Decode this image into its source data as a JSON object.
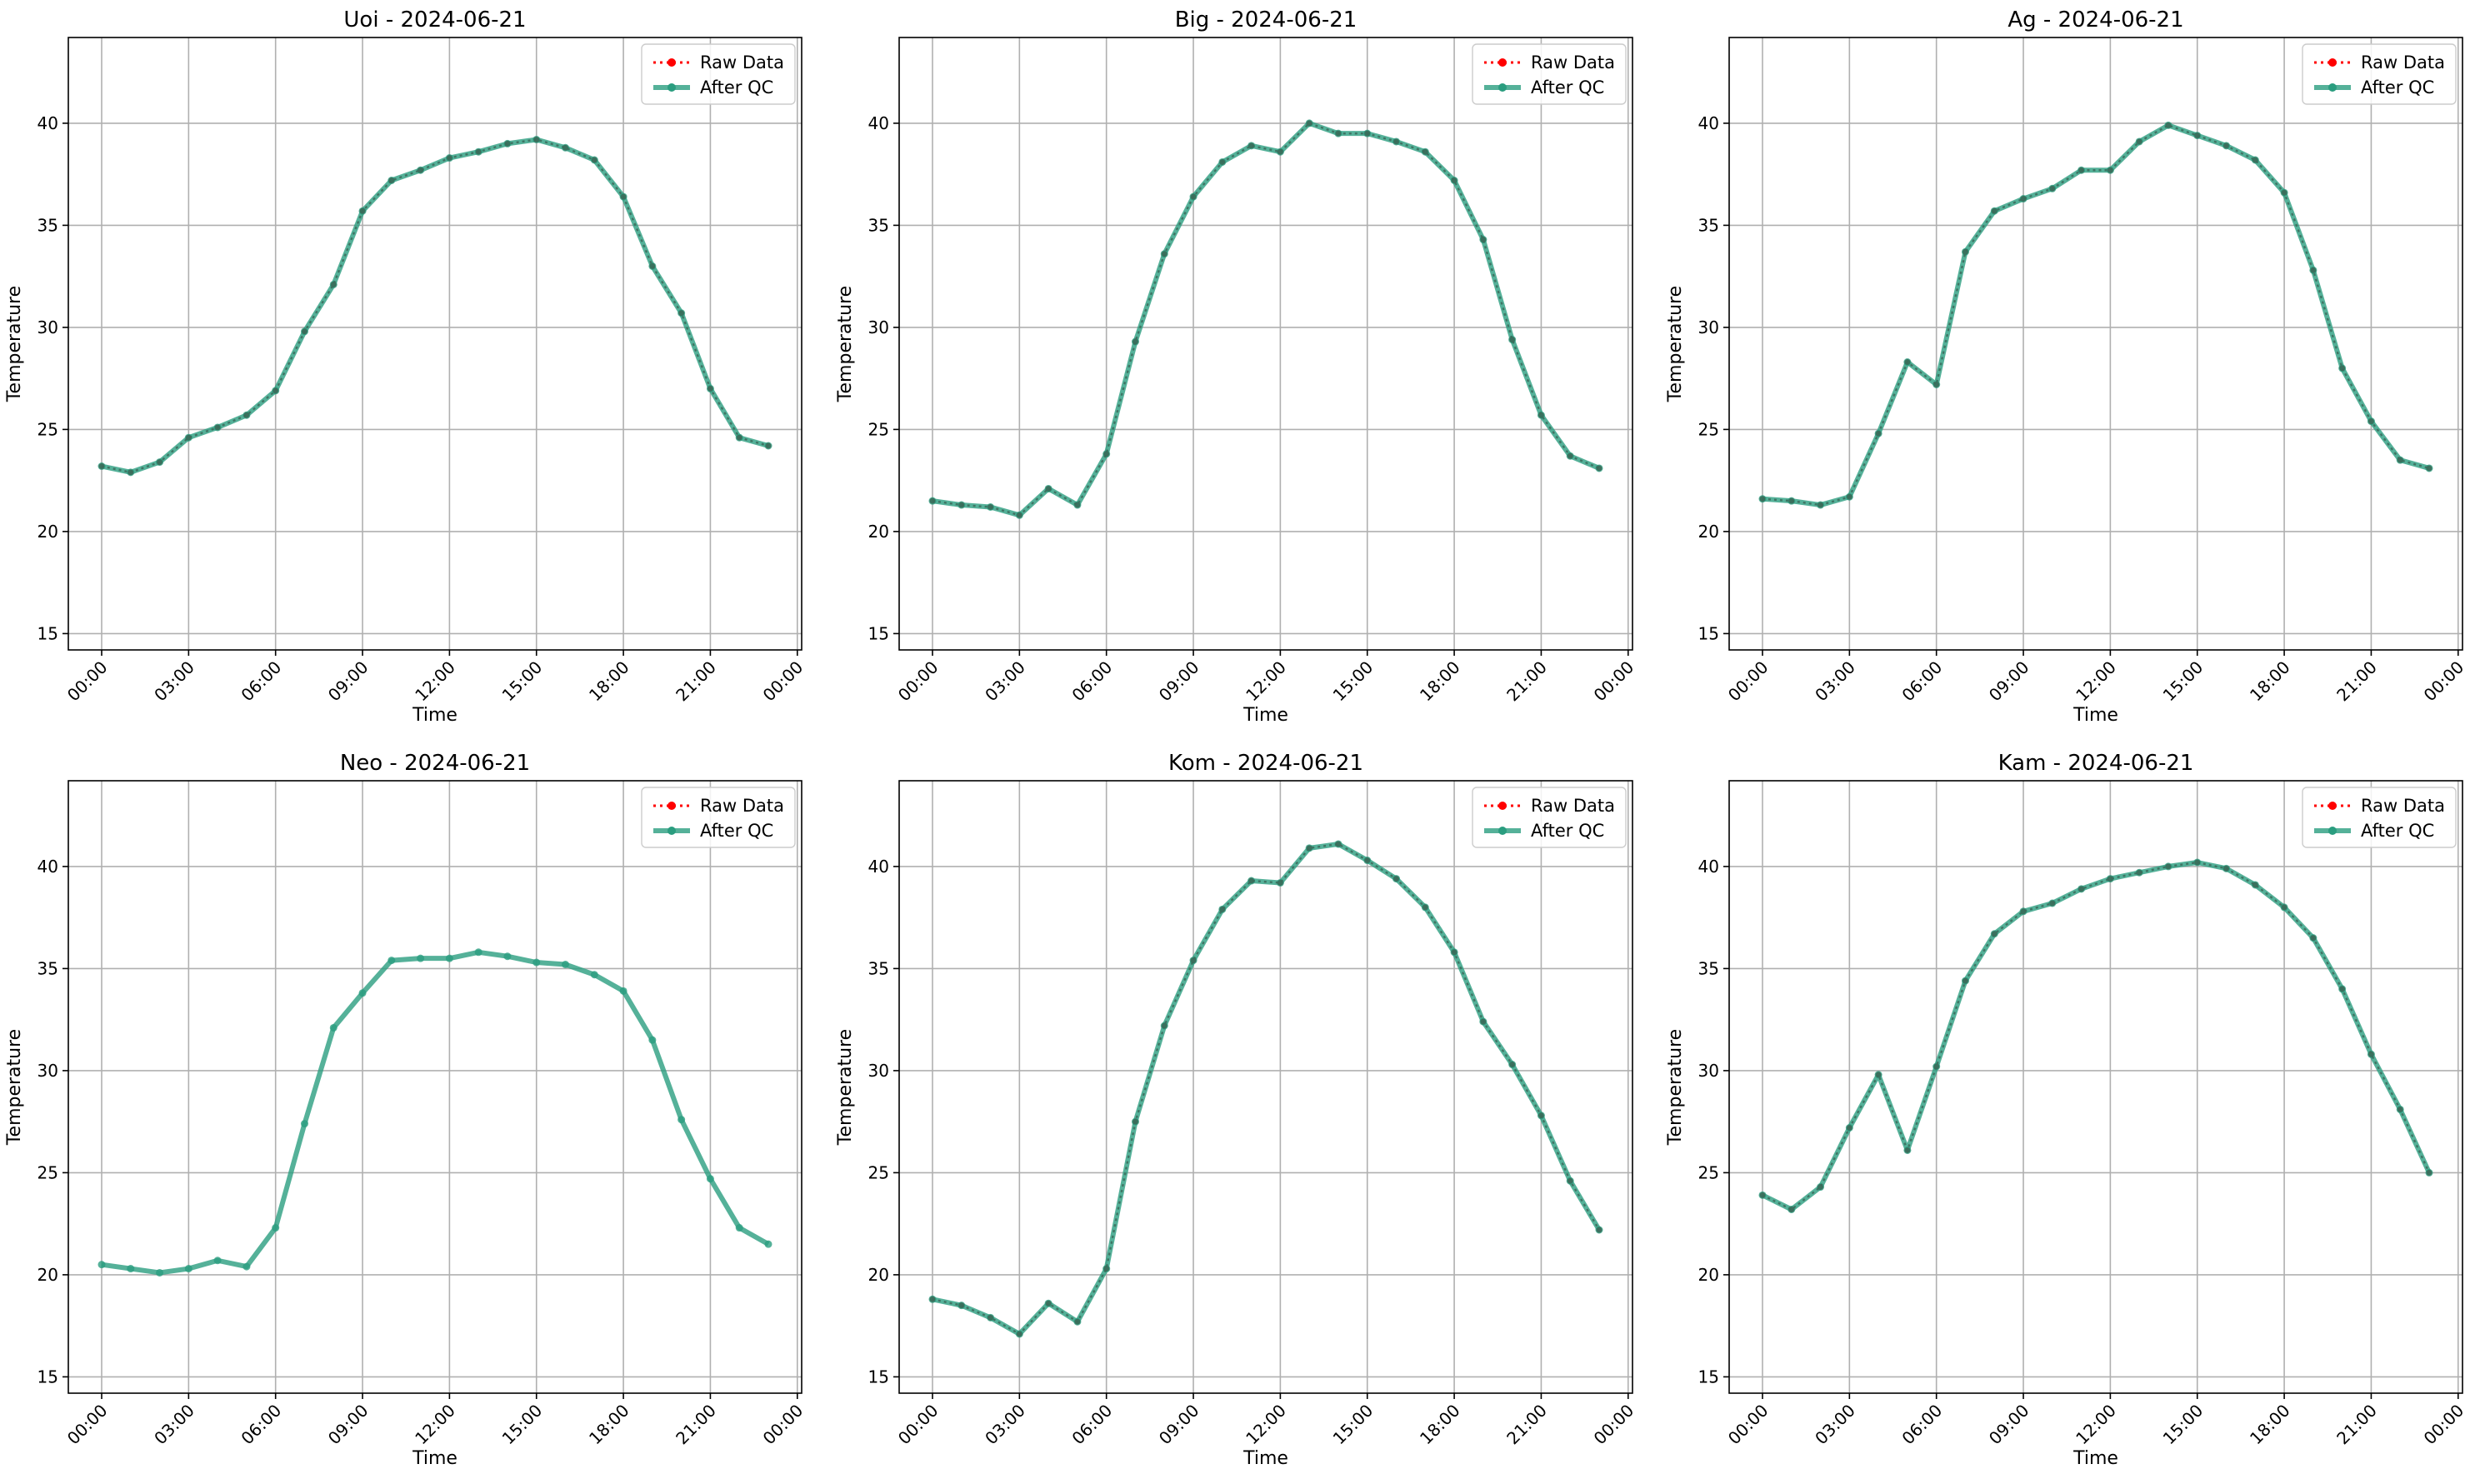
{
  "colors": {
    "raw": "#ff0000",
    "qc": "#2a9d7f",
    "grid": "#b0b0b0",
    "axis": "#000000"
  },
  "chart_data": [
    {
      "type": "line",
      "title": "Uoi - 2024-06-21",
      "xlabel": "Time",
      "ylabel": "Temperature",
      "ylim": [
        14.2,
        44.2
      ],
      "xlim_hours": [
        -1.15,
        24.15
      ],
      "yticks": [
        15,
        20,
        25,
        30,
        35,
        40
      ],
      "xticks": [
        "00:00",
        "03:00",
        "06:00",
        "09:00",
        "12:00",
        "15:00",
        "18:00",
        "21:00",
        "00:00"
      ],
      "grid": true,
      "legend_position": "top-right",
      "x_hours": [
        0,
        1,
        2,
        3,
        4,
        5,
        6,
        7,
        8,
        9,
        10,
        11,
        12,
        13,
        14,
        15,
        16,
        17,
        18,
        19,
        20,
        21,
        22,
        23
      ],
      "series": [
        {
          "name": "Raw Data",
          "values": [
            23.2,
            22.9,
            23.4,
            24.6,
            25.1,
            25.7,
            26.9,
            29.8,
            32.1,
            35.7,
            37.2,
            37.7,
            38.3,
            38.6,
            39.0,
            39.2,
            38.8,
            38.2,
            36.4,
            33.0,
            30.7,
            27.0,
            24.6,
            24.2
          ]
        },
        {
          "name": "After QC",
          "values": [
            23.2,
            22.9,
            23.4,
            24.6,
            25.1,
            25.7,
            26.9,
            29.8,
            32.1,
            35.7,
            37.2,
            37.7,
            38.3,
            38.6,
            39.0,
            39.2,
            38.8,
            38.2,
            36.4,
            33.0,
            30.7,
            27.0,
            24.6,
            24.2
          ]
        }
      ]
    },
    {
      "type": "line",
      "title": "Big - 2024-06-21",
      "xlabel": "Time",
      "ylabel": "Temperature",
      "ylim": [
        14.2,
        44.2
      ],
      "xlim_hours": [
        -1.15,
        24.15
      ],
      "yticks": [
        15,
        20,
        25,
        30,
        35,
        40
      ],
      "xticks": [
        "00:00",
        "03:00",
        "06:00",
        "09:00",
        "12:00",
        "15:00",
        "18:00",
        "21:00",
        "00:00"
      ],
      "grid": true,
      "legend_position": "top-right",
      "x_hours": [
        0,
        1,
        2,
        3,
        4,
        5,
        6,
        7,
        8,
        9,
        10,
        11,
        12,
        13,
        14,
        15,
        16,
        17,
        18,
        19,
        20,
        21,
        22,
        23
      ],
      "series": [
        {
          "name": "Raw Data",
          "values": [
            21.5,
            21.3,
            21.2,
            20.8,
            22.1,
            21.3,
            23.8,
            29.3,
            33.6,
            36.4,
            38.1,
            38.9,
            38.6,
            40.0,
            39.5,
            39.5,
            39.1,
            38.6,
            37.2,
            34.3,
            29.4,
            25.7,
            23.7,
            23.1
          ]
        },
        {
          "name": "After QC",
          "values": [
            21.5,
            21.3,
            21.2,
            20.8,
            22.1,
            21.3,
            23.8,
            29.3,
            33.6,
            36.4,
            38.1,
            38.9,
            38.6,
            40.0,
            39.5,
            39.5,
            39.1,
            38.6,
            37.2,
            34.3,
            29.4,
            25.7,
            23.7,
            23.1
          ]
        }
      ]
    },
    {
      "type": "line",
      "title": "Ag - 2024-06-21",
      "xlabel": "Time",
      "ylabel": "Temperature",
      "ylim": [
        14.2,
        44.2
      ],
      "xlim_hours": [
        -1.15,
        24.15
      ],
      "yticks": [
        15,
        20,
        25,
        30,
        35,
        40
      ],
      "xticks": [
        "00:00",
        "03:00",
        "06:00",
        "09:00",
        "12:00",
        "15:00",
        "18:00",
        "21:00",
        "00:00"
      ],
      "grid": true,
      "legend_position": "top-right",
      "x_hours": [
        0,
        1,
        2,
        3,
        4,
        5,
        6,
        7,
        8,
        9,
        10,
        11,
        12,
        13,
        14,
        15,
        16,
        17,
        18,
        19,
        20,
        21,
        22,
        23
      ],
      "series": [
        {
          "name": "Raw Data",
          "values": [
            21.6,
            21.5,
            21.3,
            21.7,
            24.8,
            28.3,
            27.2,
            33.7,
            35.7,
            36.3,
            36.8,
            37.7,
            37.7,
            39.1,
            39.9,
            39.4,
            38.9,
            38.2,
            36.6,
            32.8,
            28.0,
            25.4,
            23.5,
            23.1
          ]
        },
        {
          "name": "After QC",
          "values": [
            21.6,
            21.5,
            21.3,
            21.7,
            24.8,
            28.3,
            27.2,
            33.7,
            35.7,
            36.3,
            36.8,
            37.7,
            37.7,
            39.1,
            39.9,
            39.4,
            38.9,
            38.2,
            36.6,
            32.8,
            28.0,
            25.4,
            23.5,
            23.1
          ]
        }
      ]
    },
    {
      "type": "line",
      "title": "Neo - 2024-06-21",
      "xlabel": "Time",
      "ylabel": "Temperature",
      "ylim": [
        14.2,
        44.2
      ],
      "xlim_hours": [
        -1.15,
        24.15
      ],
      "yticks": [
        15,
        20,
        25,
        30,
        35,
        40
      ],
      "xticks": [
        "00:00",
        "03:00",
        "06:00",
        "09:00",
        "12:00",
        "15:00",
        "18:00",
        "21:00",
        "00:00"
      ],
      "grid": true,
      "legend_position": "top-right",
      "x_hours": [
        0,
        1,
        2,
        3,
        4,
        5,
        6,
        7,
        8,
        9,
        10,
        11,
        12,
        13,
        14,
        15,
        16,
        17,
        18,
        19,
        20,
        21,
        22,
        23
      ],
      "series": [
        {
          "name": "Raw Data",
          "values": []
        },
        {
          "name": "After QC",
          "values": [
            20.5,
            20.3,
            20.1,
            20.3,
            20.7,
            20.4,
            22.3,
            27.4,
            32.1,
            33.8,
            35.4,
            35.5,
            35.5,
            35.8,
            35.6,
            35.3,
            35.2,
            34.7,
            33.9,
            31.5,
            27.6,
            24.7,
            22.3,
            21.5
          ]
        }
      ]
    },
    {
      "type": "line",
      "title": "Kom - 2024-06-21",
      "xlabel": "Time",
      "ylabel": "Temperature",
      "ylim": [
        14.2,
        44.2
      ],
      "xlim_hours": [
        -1.15,
        24.15
      ],
      "yticks": [
        15,
        20,
        25,
        30,
        35,
        40
      ],
      "xticks": [
        "00:00",
        "03:00",
        "06:00",
        "09:00",
        "12:00",
        "15:00",
        "18:00",
        "21:00",
        "00:00"
      ],
      "grid": true,
      "legend_position": "top-right",
      "x_hours": [
        0,
        1,
        2,
        3,
        4,
        5,
        6,
        7,
        8,
        9,
        10,
        11,
        12,
        13,
        14,
        15,
        16,
        17,
        18,
        19,
        20,
        21,
        22,
        23
      ],
      "series": [
        {
          "name": "Raw Data",
          "values": [
            18.8,
            18.5,
            17.9,
            17.1,
            18.6,
            17.7,
            20.3,
            27.5,
            32.2,
            35.4,
            37.9,
            39.3,
            39.2,
            40.9,
            41.1,
            40.3,
            39.4,
            38.0,
            35.8,
            32.4,
            30.3,
            27.8,
            24.6,
            22.2
          ]
        },
        {
          "name": "After QC",
          "values": [
            18.8,
            18.5,
            17.9,
            17.1,
            18.6,
            17.7,
            20.3,
            27.5,
            32.2,
            35.4,
            37.9,
            39.3,
            39.2,
            40.9,
            41.1,
            40.3,
            39.4,
            38.0,
            35.8,
            32.4,
            30.3,
            27.8,
            24.6,
            22.2
          ]
        }
      ]
    },
    {
      "type": "line",
      "title": "Kam - 2024-06-21",
      "xlabel": "Time",
      "ylabel": "Temperature",
      "ylim": [
        14.2,
        44.2
      ],
      "xlim_hours": [
        -1.15,
        24.15
      ],
      "yticks": [
        15,
        20,
        25,
        30,
        35,
        40
      ],
      "xticks": [
        "00:00",
        "03:00",
        "06:00",
        "09:00",
        "12:00",
        "15:00",
        "18:00",
        "21:00",
        "00:00"
      ],
      "grid": true,
      "legend_position": "top-right",
      "x_hours": [
        0,
        1,
        2,
        3,
        4,
        5,
        6,
        7,
        8,
        9,
        10,
        11,
        12,
        13,
        14,
        15,
        16,
        17,
        18,
        19,
        20,
        21,
        22,
        23
      ],
      "series": [
        {
          "name": "Raw Data",
          "values": [
            23.9,
            23.2,
            24.3,
            27.2,
            29.8,
            26.1,
            30.2,
            34.4,
            36.7,
            37.8,
            38.2,
            38.9,
            39.4,
            39.7,
            40.0,
            40.2,
            39.9,
            39.1,
            38.0,
            36.5,
            34.0,
            30.8,
            28.1,
            25.0
          ]
        },
        {
          "name": "After QC",
          "values": [
            23.9,
            23.2,
            24.3,
            27.2,
            29.8,
            26.1,
            30.2,
            34.4,
            36.7,
            37.8,
            38.2,
            38.9,
            39.4,
            39.7,
            40.0,
            40.2,
            39.9,
            39.1,
            38.0,
            36.5,
            34.0,
            30.8,
            28.1,
            25.0
          ]
        }
      ]
    }
  ]
}
